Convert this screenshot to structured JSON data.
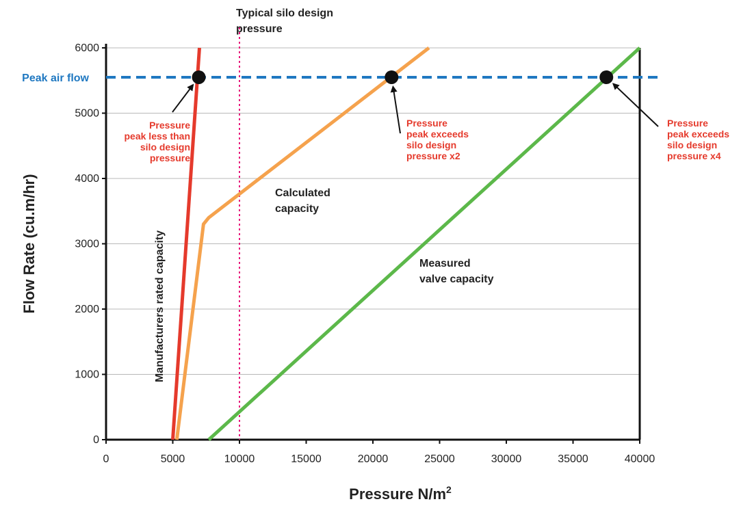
{
  "chart_data": {
    "type": "line",
    "title": "",
    "xlabel": "Pressure N/m",
    "xlabel_superscript": "2",
    "ylabel": "Flow Rate (cu.m/hr)",
    "xlim": [
      0,
      40000
    ],
    "ylim": [
      0,
      6000
    ],
    "x_ticks": [
      0,
      5000,
      10000,
      15000,
      20000,
      25000,
      30000,
      35000,
      40000
    ],
    "y_ticks": [
      0,
      1000,
      2000,
      3000,
      4000,
      5000,
      6000
    ],
    "grid": "horizontal",
    "series": [
      {
        "key": "manufacturers",
        "label": "Manufacturers rated capacity",
        "color": "#e53a2c",
        "points": [
          [
            5000,
            0
          ],
          [
            7000,
            6000
          ]
        ]
      },
      {
        "key": "calculated",
        "label_lines": [
          "Calculated",
          "capacity"
        ],
        "color": "#f5a24d",
        "points": [
          [
            5300,
            0
          ],
          [
            7300,
            3300
          ],
          [
            7700,
            3400
          ],
          [
            24200,
            6000
          ]
        ]
      },
      {
        "key": "measured",
        "label_lines": [
          "Measured",
          "valve capacity"
        ],
        "color": "#5cb84a",
        "points": [
          [
            7700,
            0
          ],
          [
            40000,
            6000
          ]
        ]
      }
    ],
    "reference_lines": [
      {
        "key": "peak",
        "orientation": "horizontal",
        "value": 5550,
        "label": "Peak air flow",
        "color": "#1f78c1",
        "style": "dashed"
      },
      {
        "key": "silo",
        "orientation": "vertical",
        "value": 10000,
        "label_lines": [
          "Typical silo design",
          "pressure"
        ],
        "color": "#e8157a",
        "style": "dotted"
      }
    ],
    "markers": [
      {
        "key": "m1",
        "x": 6950,
        "y": 5550,
        "note_lines": [
          "Pressure",
          "peak less than",
          "silo design",
          "pressure"
        ],
        "note_color": "#e53a2c"
      },
      {
        "key": "m2",
        "x": 21400,
        "y": 5550,
        "note_lines": [
          "Pressure",
          "peak exceeds",
          "silo design",
          "pressure x2"
        ],
        "note_color": "#e53a2c"
      },
      {
        "key": "m3",
        "x": 37500,
        "y": 5550,
        "note_lines": [
          "Pressure",
          "peak exceeds",
          "silo design",
          "pressure x4"
        ],
        "note_color": "#e53a2c"
      }
    ]
  }
}
